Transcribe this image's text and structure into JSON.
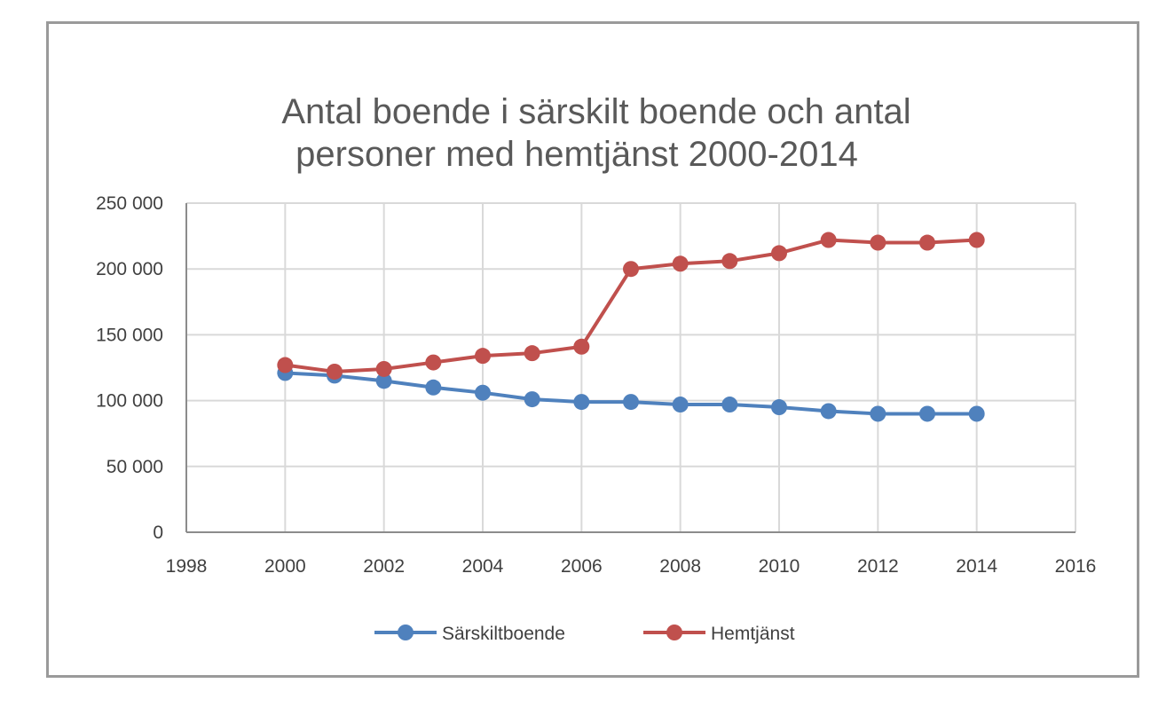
{
  "chart_data": {
    "type": "scatter",
    "title_lines": [
      "Antal boende i särskilt boende och antal",
      "personer med hemtjänst 2000-2014"
    ],
    "xlabel": "",
    "ylabel": "",
    "xlim": [
      1998,
      2016
    ],
    "ylim": [
      0,
      250000
    ],
    "x_ticks": [
      1998,
      2000,
      2002,
      2004,
      2006,
      2008,
      2010,
      2012,
      2014,
      2016
    ],
    "x_tick_labels": [
      "1998",
      "2000",
      "2002",
      "2004",
      "2006",
      "2008",
      "2010",
      "2012",
      "2014",
      "2016"
    ],
    "y_ticks": [
      0,
      50000,
      100000,
      150000,
      200000,
      250000
    ],
    "y_tick_labels": [
      "0",
      "50 000",
      "100 000",
      "150 000",
      "200 000",
      "250 000"
    ],
    "grid": true,
    "legend_position": "bottom",
    "x": [
      2000,
      2001,
      2002,
      2003,
      2004,
      2005,
      2006,
      2007,
      2008,
      2009,
      2010,
      2011,
      2012,
      2013,
      2014
    ],
    "series": [
      {
        "name": "Särskiltboende",
        "color": "#4f81bd",
        "values": [
          121000,
          119000,
          115000,
          110000,
          106000,
          101000,
          99000,
          99000,
          97000,
          97000,
          95000,
          92000,
          90000,
          90000,
          90000
        ]
      },
      {
        "name": "Hemtjänst",
        "color": "#c0504d",
        "values": [
          127000,
          122000,
          124000,
          129000,
          134000,
          136000,
          141000,
          200000,
          204000,
          206000,
          212000,
          222000,
          220000,
          220000,
          222000
        ]
      }
    ]
  }
}
